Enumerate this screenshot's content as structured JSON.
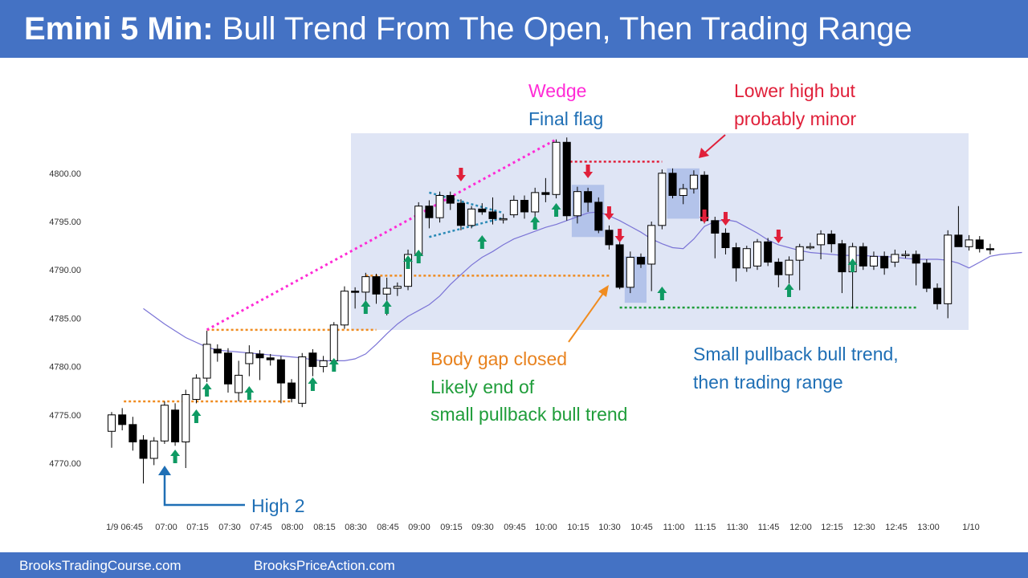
{
  "header": {
    "title_bold": "Emini 5 Min:",
    "title_rest": "Bull Trend From The Open, Then Trading Range"
  },
  "footer": {
    "left": "BrooksTradingCourse.com",
    "right": "BrooksPriceAction.com"
  },
  "colors": {
    "header_bg": "#4472c4",
    "range_box": "#dfe5f5",
    "ema": "#7b74d6",
    "up_arrow": "#0f9a63",
    "down_arrow": "#e0203a",
    "wedge": "#ff2bd6",
    "orange": "#f08c20",
    "green_line": "#1f9d3a",
    "flag": "#2a8ab6",
    "blue_text": "#1f6fb5"
  },
  "annotations": {
    "wedge": "Wedge",
    "final_flag": "Final flag",
    "lower_high_1": "Lower high but",
    "lower_high_2": "probably minor",
    "body_gap": "Body gap closed",
    "likely_end_1": "Likely end of",
    "likely_end_2": "small pullback bull trend",
    "small_pb_1": "Small pullback bull trend,",
    "small_pb_2": "then trading range",
    "high2": "High 2"
  },
  "chart_data": {
    "type": "candlestick",
    "title": "",
    "ylim": [
      4767,
      4805
    ],
    "y_ticks": [
      "4770.00",
      "4775.00",
      "4780.00",
      "4785.00",
      "4790.00",
      "4795.00",
      "4800.00"
    ],
    "x_ticks": [
      "1/9 06:45",
      "07:00",
      "07:15",
      "07:30",
      "07:45",
      "08:00",
      "08:15",
      "08:30",
      "08:45",
      "09:00",
      "09:15",
      "09:30",
      "09:45",
      "10:00",
      "10:15",
      "10:30",
      "10:45",
      "11:00",
      "11:15",
      "11:30",
      "11:45",
      "12:00",
      "12:15",
      "12:30",
      "12:45",
      "13:00",
      "1/10"
    ],
    "bars": [
      {
        "o": 4773.3,
        "h": 4775.3,
        "l": 4771.6,
        "c": 4775.0
      },
      {
        "o": 4775.0,
        "h": 4775.7,
        "l": 4773.4,
        "c": 4774.0
      },
      {
        "o": 4774.0,
        "h": 4774.8,
        "l": 4771.3,
        "c": 4772.2
      },
      {
        "o": 4772.4,
        "h": 4772.9,
        "l": 4767.9,
        "c": 4770.5
      },
      {
        "o": 4770.5,
        "h": 4772.7,
        "l": 4769.8,
        "c": 4772.3
      },
      {
        "o": 4772.3,
        "h": 4776.4,
        "l": 4772.0,
        "c": 4776.0
      },
      {
        "o": 4775.5,
        "h": 4776.2,
        "l": 4771.8,
        "c": 4772.2
      },
      {
        "o": 4772.2,
        "h": 4777.6,
        "l": 4769.5,
        "c": 4777.1
      },
      {
        "o": 4776.6,
        "h": 4779.2,
        "l": 4776.2,
        "c": 4778.8
      },
      {
        "o": 4778.8,
        "h": 4783.7,
        "l": 4778.4,
        "c": 4782.3
      },
      {
        "o": 4781.8,
        "h": 4782.3,
        "l": 4780.5,
        "c": 4781.4
      },
      {
        "o": 4781.4,
        "h": 4781.9,
        "l": 4777.3,
        "c": 4778.2
      },
      {
        "o": 4777.3,
        "h": 4780.6,
        "l": 4776.4,
        "c": 4779.1
      },
      {
        "o": 4780.3,
        "h": 4782.2,
        "l": 4779.0,
        "c": 4781.4
      },
      {
        "o": 4781.3,
        "h": 4781.7,
        "l": 4778.6,
        "c": 4780.9
      },
      {
        "o": 4780.9,
        "h": 4781.3,
        "l": 4780.1,
        "c": 4780.7
      },
      {
        "o": 4780.7,
        "h": 4781.1,
        "l": 4776.2,
        "c": 4778.3
      },
      {
        "o": 4778.3,
        "h": 4778.7,
        "l": 4776.3,
        "c": 4776.7
      },
      {
        "o": 4776.2,
        "h": 4781.4,
        "l": 4775.8,
        "c": 4781.0
      },
      {
        "o": 4781.4,
        "h": 4781.8,
        "l": 4779.0,
        "c": 4780.0
      },
      {
        "o": 4780.0,
        "h": 4781.1,
        "l": 4779.4,
        "c": 4780.6
      },
      {
        "o": 4780.6,
        "h": 4784.6,
        "l": 4779.8,
        "c": 4784.3
      },
      {
        "o": 4784.3,
        "h": 4788.3,
        "l": 4783.9,
        "c": 4787.8
      },
      {
        "o": 4787.8,
        "h": 4788.2,
        "l": 4786.0,
        "c": 4787.7
      },
      {
        "o": 4787.7,
        "h": 4789.7,
        "l": 4785.7,
        "c": 4789.3
      },
      {
        "o": 4789.3,
        "h": 4789.6,
        "l": 4786.5,
        "c": 4787.5
      },
      {
        "o": 4787.5,
        "h": 4789.2,
        "l": 4785.3,
        "c": 4788.1
      },
      {
        "o": 4788.1,
        "h": 4788.7,
        "l": 4787.3,
        "c": 4788.3
      },
      {
        "o": 4788.3,
        "h": 4792.1,
        "l": 4787.9,
        "c": 4791.6
      },
      {
        "o": 4791.6,
        "h": 4797.0,
        "l": 4791.0,
        "c": 4796.6
      },
      {
        "o": 4796.6,
        "h": 4797.2,
        "l": 4794.3,
        "c": 4795.4
      },
      {
        "o": 4795.4,
        "h": 4798.1,
        "l": 4794.9,
        "c": 4797.7
      },
      {
        "o": 4797.7,
        "h": 4798.1,
        "l": 4796.2,
        "c": 4796.9
      },
      {
        "o": 4796.9,
        "h": 4797.3,
        "l": 4794.1,
        "c": 4794.6
      },
      {
        "o": 4794.6,
        "h": 4796.6,
        "l": 4794.3,
        "c": 4796.3
      },
      {
        "o": 4796.3,
        "h": 4796.9,
        "l": 4795.7,
        "c": 4796.0
      },
      {
        "o": 4796.0,
        "h": 4797.5,
        "l": 4794.7,
        "c": 4795.3
      },
      {
        "o": 4795.3,
        "h": 4795.8,
        "l": 4794.8,
        "c": 4795.3
      },
      {
        "o": 4795.7,
        "h": 4797.7,
        "l": 4795.4,
        "c": 4797.2
      },
      {
        "o": 4797.2,
        "h": 4797.7,
        "l": 4795.3,
        "c": 4796.0
      },
      {
        "o": 4796.0,
        "h": 4798.5,
        "l": 4795.2,
        "c": 4798.0
      },
      {
        "o": 4798.0,
        "h": 4799.5,
        "l": 4797.0,
        "c": 4797.8
      },
      {
        "o": 4797.8,
        "h": 4803.5,
        "l": 4797.4,
        "c": 4803.2
      },
      {
        "o": 4803.2,
        "h": 4803.7,
        "l": 4795.1,
        "c": 4795.6
      },
      {
        "o": 4795.6,
        "h": 4798.6,
        "l": 4794.8,
        "c": 4798.1
      },
      {
        "o": 4798.1,
        "h": 4798.5,
        "l": 4796.0,
        "c": 4797.0
      },
      {
        "o": 4797.0,
        "h": 4797.5,
        "l": 4793.8,
        "c": 4794.1
      },
      {
        "o": 4794.1,
        "h": 4794.6,
        "l": 4792.1,
        "c": 4792.6
      },
      {
        "o": 4792.6,
        "h": 4793.2,
        "l": 4788.0,
        "c": 4788.2
      },
      {
        "o": 4788.2,
        "h": 4791.9,
        "l": 4787.6,
        "c": 4791.3
      },
      {
        "o": 4791.3,
        "h": 4791.7,
        "l": 4790.2,
        "c": 4790.6
      },
      {
        "o": 4790.6,
        "h": 4795.0,
        "l": 4787.8,
        "c": 4794.6
      },
      {
        "o": 4794.6,
        "h": 4800.4,
        "l": 4794.2,
        "c": 4800.0
      },
      {
        "o": 4800.0,
        "h": 4800.5,
        "l": 4797.4,
        "c": 4797.7
      },
      {
        "o": 4797.7,
        "h": 4798.9,
        "l": 4796.8,
        "c": 4798.4
      },
      {
        "o": 4798.4,
        "h": 4800.3,
        "l": 4797.9,
        "c": 4799.8
      },
      {
        "o": 4799.8,
        "h": 4800.2,
        "l": 4794.8,
        "c": 4795.1
      },
      {
        "o": 4795.1,
        "h": 4795.5,
        "l": 4791.2,
        "c": 4793.8
      },
      {
        "o": 4793.8,
        "h": 4794.3,
        "l": 4791.6,
        "c": 4792.3
      },
      {
        "o": 4792.3,
        "h": 4792.8,
        "l": 4788.8,
        "c": 4790.2
      },
      {
        "o": 4790.2,
        "h": 4792.5,
        "l": 4789.8,
        "c": 4792.2
      },
      {
        "o": 4790.4,
        "h": 4793.2,
        "l": 4790.0,
        "c": 4792.9
      },
      {
        "o": 4792.9,
        "h": 4793.3,
        "l": 4790.4,
        "c": 4790.8
      },
      {
        "o": 4790.8,
        "h": 4791.2,
        "l": 4788.2,
        "c": 4789.5
      },
      {
        "o": 4789.5,
        "h": 4791.4,
        "l": 4788.6,
        "c": 4791.0
      },
      {
        "o": 4791.0,
        "h": 4792.7,
        "l": 4787.9,
        "c": 4792.4
      },
      {
        "o": 4792.4,
        "h": 4792.8,
        "l": 4792.1,
        "c": 4792.4
      },
      {
        "o": 4792.6,
        "h": 4794.1,
        "l": 4791.1,
        "c": 4793.7
      },
      {
        "o": 4793.7,
        "h": 4794.1,
        "l": 4791.8,
        "c": 4792.7
      },
      {
        "o": 4792.7,
        "h": 4793.1,
        "l": 4787.6,
        "c": 4789.8
      },
      {
        "o": 4789.8,
        "h": 4792.8,
        "l": 4786.0,
        "c": 4792.4
      },
      {
        "o": 4792.4,
        "h": 4792.8,
        "l": 4790.0,
        "c": 4790.4
      },
      {
        "o": 4790.4,
        "h": 4791.9,
        "l": 4790.0,
        "c": 4791.4
      },
      {
        "o": 4791.4,
        "h": 4791.9,
        "l": 4789.5,
        "c": 4790.2
      },
      {
        "o": 4790.8,
        "h": 4792.1,
        "l": 4790.3,
        "c": 4791.6
      },
      {
        "o": 4791.6,
        "h": 4792.0,
        "l": 4791.2,
        "c": 4791.6
      },
      {
        "o": 4791.6,
        "h": 4792.0,
        "l": 4788.4,
        "c": 4790.7
      },
      {
        "o": 4790.7,
        "h": 4791.1,
        "l": 4787.7,
        "c": 4788.1
      },
      {
        "o": 4788.1,
        "h": 4788.6,
        "l": 4785.9,
        "c": 4786.5
      },
      {
        "o": 4786.5,
        "h": 4794.1,
        "l": 4785.0,
        "c": 4793.6
      },
      {
        "o": 4793.6,
        "h": 4796.6,
        "l": 4792.7,
        "c": 4792.4
      },
      {
        "o": 4792.4,
        "h": 4793.6,
        "l": 4792.0,
        "c": 4793.1
      },
      {
        "o": 4793.1,
        "h": 4793.5,
        "l": 4791.8,
        "c": 4792.2
      },
      {
        "o": 4792.2,
        "h": 4792.7,
        "l": 4791.6,
        "c": 4792.1
      }
    ],
    "ema": [
      4786.0,
      4785.2,
      4784.4,
      4783.7,
      4783.0,
      4782.5,
      4782.0,
      4781.7,
      4781.6,
      4781.5,
      4781.4,
      4781.3,
      4781.2,
      4781.1,
      4781.0,
      4780.9,
      4780.7,
      4780.6,
      4780.6,
      4780.6,
      4780.8,
      4781.3,
      4782.3,
      4783.4,
      4784.4,
      4785.2,
      4785.8,
      4786.4,
      4787.3,
      4788.5,
      4789.5,
      4790.5,
      4791.3,
      4791.9,
      4792.6,
      4793.2,
      4793.6,
      4794.0,
      4794.4,
      4794.7,
      4795.1,
      4795.5,
      4795.9,
      4796.0,
      4795.6,
      4795.1,
      4794.5,
      4793.9,
      4793.2,
      4792.7,
      4792.3,
      4792.2,
      4793.2,
      4794.5,
      4795.0,
      4795.2,
      4795.0,
      4794.4,
      4793.8,
      4793.1,
      4792.6,
      4792.3,
      4792.0,
      4791.8,
      4791.7,
      4791.6,
      4791.5,
      4791.5,
      4791.5,
      4791.4,
      4791.4,
      4791.3,
      4791.2,
      4791.1,
      4791.1,
      4791.1,
      4791.0,
      4790.7,
      4790.2,
      4790.8,
      4791.4,
      4791.6,
      4791.7,
      4791.8
    ]
  }
}
